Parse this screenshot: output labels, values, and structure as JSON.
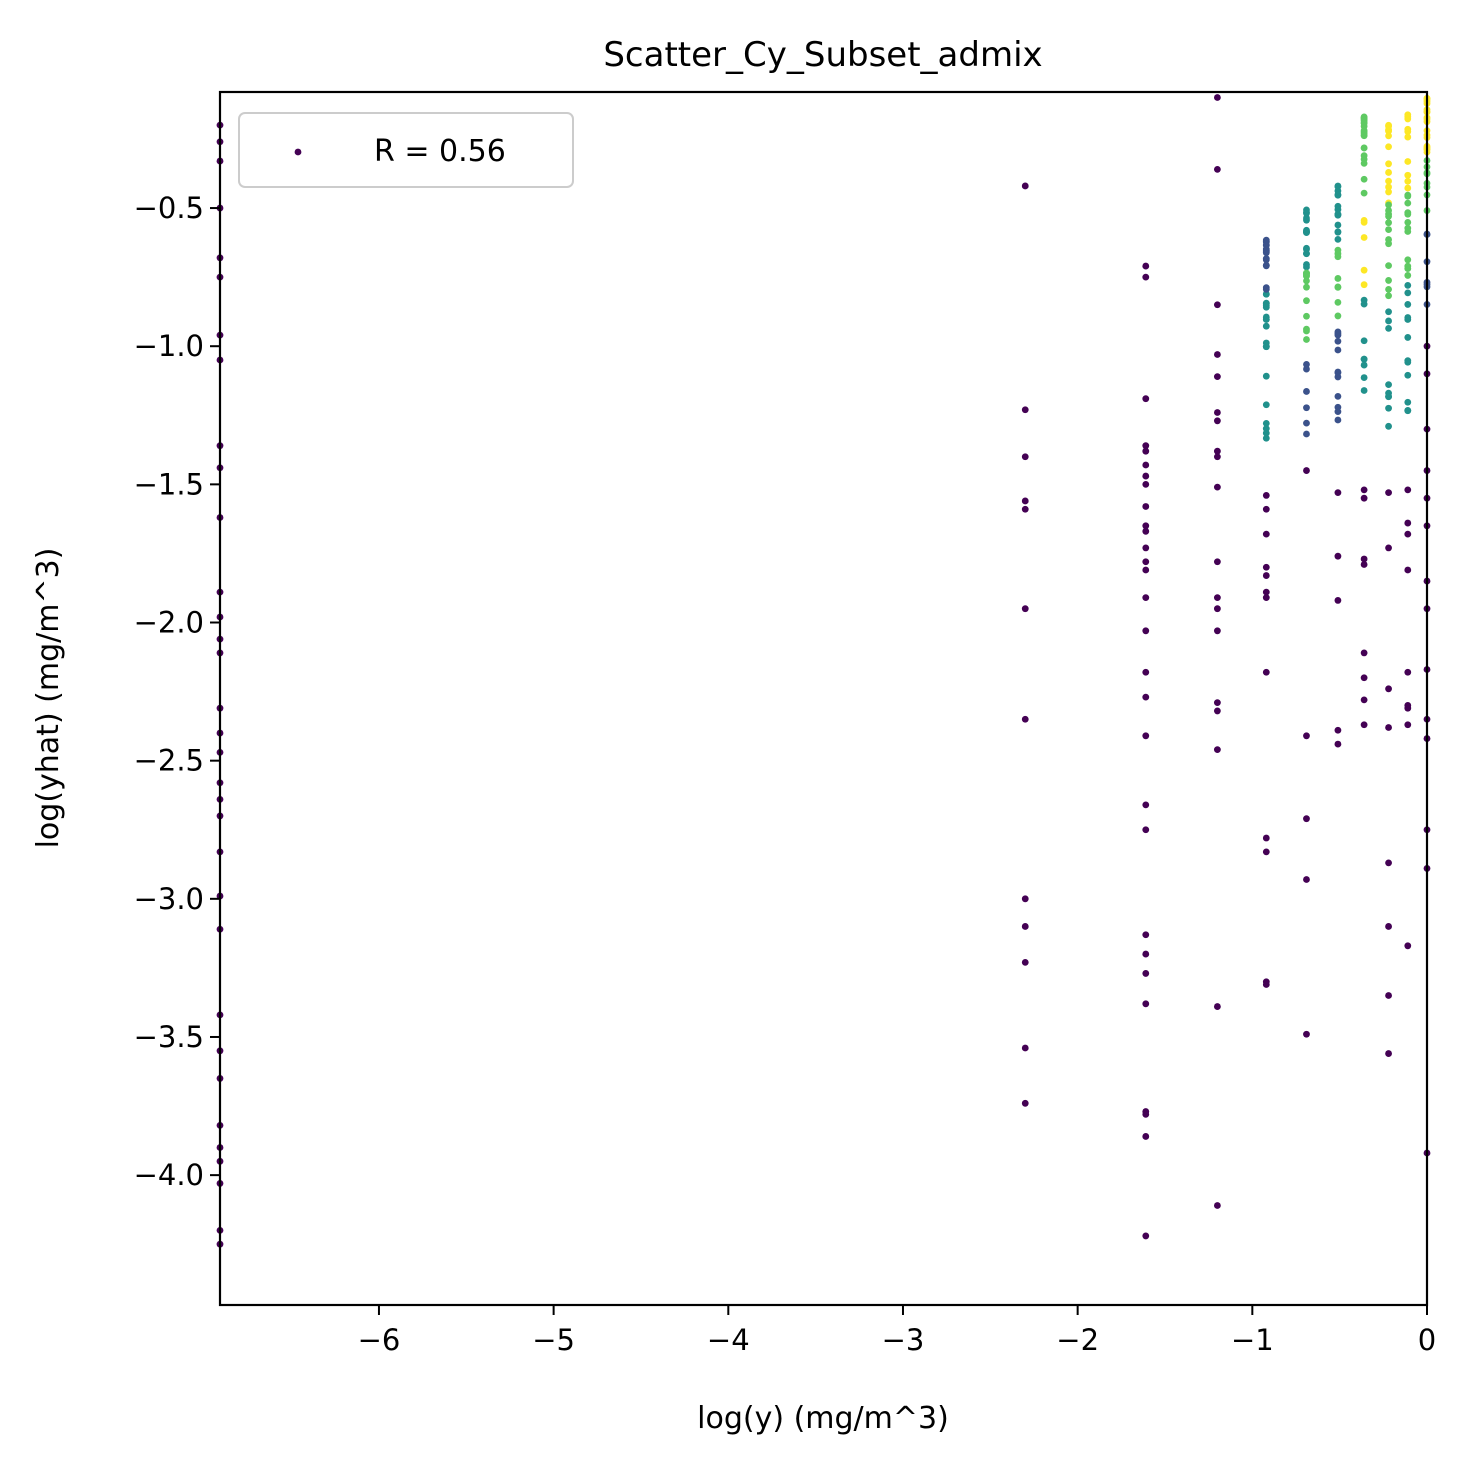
{
  "chart_data": {
    "type": "scatter",
    "title": "Scatter_Cy_Subset_admix",
    "xlabel": "log(y) (mg/m^3)",
    "ylabel": "log(yhat) (mg/m^3)",
    "xlim": [
      -6.91,
      0.0
    ],
    "ylim": [
      -4.47,
      -0.08
    ],
    "x_ticks": [
      -6,
      -5,
      -4,
      -3,
      -2,
      -1,
      0
    ],
    "x_tick_labels": [
      "−6",
      "−5",
      "−4",
      "−3",
      "−2",
      "−1",
      "0"
    ],
    "y_ticks": [
      -0.5,
      -1.0,
      -1.5,
      -2.0,
      -2.5,
      -3.0,
      -3.5,
      -4.0
    ],
    "y_tick_labels": [
      "−0.5",
      "−1.0",
      "−1.5",
      "−2.0",
      "−2.5",
      "−3.0",
      "−3.5",
      "−4.0"
    ],
    "grid": false,
    "legend": {
      "placement": "top-left",
      "label": "R = 0.56"
    },
    "colormap": "viridis",
    "colors": [
      "#440154",
      "#3b528b",
      "#21918c",
      "#5ec962",
      "#fde725"
    ],
    "series": [
      {
        "label": "R = 0.56",
        "points": [
          [
            -6.91,
            -0.2
          ],
          [
            -6.91,
            -0.26
          ],
          [
            -6.91,
            -0.33
          ],
          [
            -6.91,
            -0.5
          ],
          [
            -6.91,
            -0.68
          ],
          [
            -6.91,
            -0.75
          ],
          [
            -6.91,
            -0.96
          ],
          [
            -6.91,
            -1.05
          ],
          [
            -6.91,
            -1.36
          ],
          [
            -6.91,
            -1.44
          ],
          [
            -6.91,
            -1.62
          ],
          [
            -6.91,
            -1.89
          ],
          [
            -6.91,
            -1.98
          ],
          [
            -6.91,
            -2.06
          ],
          [
            -6.91,
            -2.11
          ],
          [
            -6.91,
            -2.31
          ],
          [
            -6.91,
            -2.4
          ],
          [
            -6.91,
            -2.47
          ],
          [
            -6.91,
            -2.58
          ],
          [
            -6.91,
            -2.64
          ],
          [
            -6.91,
            -2.7
          ],
          [
            -6.91,
            -2.83
          ],
          [
            -6.91,
            -2.99
          ],
          [
            -6.91,
            -3.11
          ],
          [
            -6.91,
            -3.42
          ],
          [
            -6.91,
            -3.55
          ],
          [
            -6.91,
            -3.65
          ],
          [
            -6.91,
            -3.82
          ],
          [
            -6.91,
            -3.9
          ],
          [
            -6.91,
            -3.95
          ],
          [
            -6.91,
            -4.03
          ],
          [
            -6.91,
            -4.2
          ],
          [
            -6.91,
            -4.25
          ],
          [
            -2.3,
            -0.42
          ],
          [
            -2.3,
            -1.23
          ],
          [
            -2.3,
            -1.4
          ],
          [
            -2.3,
            -1.56
          ],
          [
            -2.3,
            -1.59
          ],
          [
            -2.3,
            -1.95
          ],
          [
            -2.3,
            -2.35
          ],
          [
            -2.3,
            -3.0
          ],
          [
            -2.3,
            -3.1
          ],
          [
            -2.3,
            -3.23
          ],
          [
            -2.3,
            -3.54
          ],
          [
            -2.3,
            -3.74
          ],
          [
            -1.61,
            -0.71
          ],
          [
            -1.61,
            -0.75
          ],
          [
            -1.61,
            -1.19
          ],
          [
            -1.61,
            -1.36
          ],
          [
            -1.61,
            -1.38
          ],
          [
            -1.61,
            -1.43
          ],
          [
            -1.61,
            -1.47
          ],
          [
            -1.61,
            -1.5
          ],
          [
            -1.61,
            -1.58
          ],
          [
            -1.61,
            -1.65
          ],
          [
            -1.61,
            -1.67
          ],
          [
            -1.61,
            -1.73
          ],
          [
            -1.61,
            -1.78
          ],
          [
            -1.61,
            -1.81
          ],
          [
            -1.61,
            -1.91
          ],
          [
            -1.61,
            -2.03
          ],
          [
            -1.61,
            -2.18
          ],
          [
            -1.61,
            -2.27
          ],
          [
            -1.61,
            -2.41
          ],
          [
            -1.61,
            -2.66
          ],
          [
            -1.61,
            -2.75
          ],
          [
            -1.61,
            -3.13
          ],
          [
            -1.61,
            -3.2
          ],
          [
            -1.61,
            -3.27
          ],
          [
            -1.61,
            -3.38
          ],
          [
            -1.61,
            -3.77
          ],
          [
            -1.61,
            -3.78
          ],
          [
            -1.61,
            -3.86
          ],
          [
            -1.61,
            -4.22
          ],
          [
            -1.2,
            -0.1
          ],
          [
            -1.2,
            -0.36
          ],
          [
            -1.2,
            -0.85
          ],
          [
            -1.2,
            -1.03
          ],
          [
            -1.2,
            -1.11
          ],
          [
            -1.2,
            -1.24
          ],
          [
            -1.2,
            -1.27
          ],
          [
            -1.2,
            -1.38
          ],
          [
            -1.2,
            -1.4
          ],
          [
            -1.2,
            -1.51
          ],
          [
            -1.2,
            -1.78
          ],
          [
            -1.2,
            -1.91
          ],
          [
            -1.2,
            -1.95
          ],
          [
            -1.2,
            -2.03
          ],
          [
            -1.2,
            -2.29
          ],
          [
            -1.2,
            -2.32
          ],
          [
            -1.2,
            -2.46
          ],
          [
            -1.2,
            -3.39
          ],
          [
            -1.2,
            -4.11
          ],
          [
            -0.92,
            -1.54
          ],
          [
            -0.92,
            -1.59
          ],
          [
            -0.92,
            -1.68
          ],
          [
            -0.92,
            -1.8
          ],
          [
            -0.92,
            -1.83
          ],
          [
            -0.92,
            -1.89
          ],
          [
            -0.92,
            -1.91
          ],
          [
            -0.92,
            -2.18
          ],
          [
            -0.92,
            -2.78
          ],
          [
            -0.92,
            -2.83
          ],
          [
            -0.92,
            -3.3
          ],
          [
            -0.92,
            -3.31
          ],
          [
            -0.69,
            -1.45
          ],
          [
            -0.69,
            -2.41
          ],
          [
            -0.69,
            -2.71
          ],
          [
            -0.69,
            -2.93
          ],
          [
            -0.69,
            -3.49
          ],
          [
            -0.51,
            -1.53
          ],
          [
            -0.51,
            -1.76
          ],
          [
            -0.51,
            -1.92
          ],
          [
            -0.51,
            -2.39
          ],
          [
            -0.51,
            -2.44
          ],
          [
            -0.36,
            -1.52
          ],
          [
            -0.36,
            -1.55
          ],
          [
            -0.36,
            -1.77
          ],
          [
            -0.36,
            -1.79
          ],
          [
            -0.36,
            -2.11
          ],
          [
            -0.36,
            -2.2
          ],
          [
            -0.36,
            -2.28
          ],
          [
            -0.36,
            -2.37
          ],
          [
            -0.22,
            -1.53
          ],
          [
            -0.22,
            -1.73
          ],
          [
            -0.22,
            -2.24
          ],
          [
            -0.22,
            -2.38
          ],
          [
            -0.22,
            -2.87
          ],
          [
            -0.22,
            -3.1
          ],
          [
            -0.22,
            -3.35
          ],
          [
            -0.22,
            -3.56
          ],
          [
            -0.11,
            -1.52
          ],
          [
            -0.11,
            -1.64
          ],
          [
            -0.11,
            -1.68
          ],
          [
            -0.11,
            -1.81
          ],
          [
            -0.11,
            -2.18
          ],
          [
            -0.11,
            -2.3
          ],
          [
            -0.11,
            -2.31
          ],
          [
            -0.11,
            -2.37
          ],
          [
            -0.11,
            -3.17
          ],
          [
            0.0,
            -1.0
          ],
          [
            0.0,
            -1.1
          ],
          [
            0.0,
            -1.3
          ],
          [
            0.0,
            -1.45
          ],
          [
            0.0,
            -1.55
          ],
          [
            0.0,
            -1.65
          ],
          [
            0.0,
            -1.85
          ],
          [
            0.0,
            -1.95
          ],
          [
            0.0,
            -2.17
          ],
          [
            0.0,
            -2.35
          ],
          [
            0.0,
            -2.42
          ],
          [
            0.0,
            -2.75
          ],
          [
            0.0,
            -2.89
          ],
          [
            0.0,
            -3.92
          ]
        ]
      }
    ]
  }
}
